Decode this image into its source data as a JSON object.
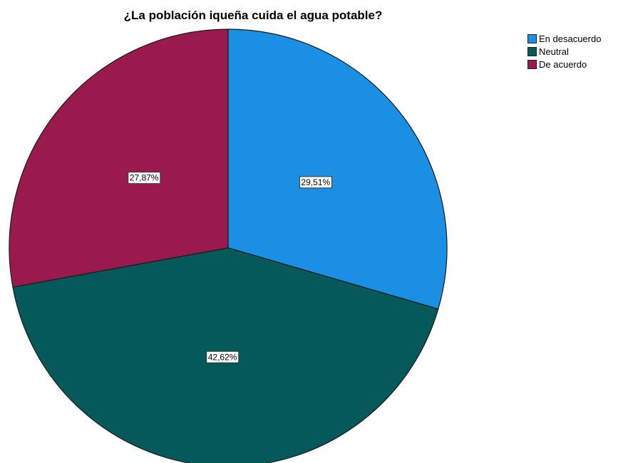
{
  "chart_data": {
    "type": "pie",
    "title": "¿La población iqueña cuida el agua potable?",
    "categories": [
      "En desacuerdo",
      "Neutral",
      "De acuerdo"
    ],
    "values": [
      29.51,
      42.62,
      27.87
    ],
    "value_labels": [
      "29,51%",
      "42,62%",
      "27,87%"
    ],
    "colors": [
      "#1a8fe3",
      "#06595a",
      "#9a1a4d"
    ],
    "start_angle_deg": 0,
    "direction": "clockwise",
    "legend_placement": "top-right"
  },
  "legend": {
    "items": [
      {
        "label": "En desacuerdo",
        "color": "#1a8fe3"
      },
      {
        "label": "Neutral",
        "color": "#06595a"
      },
      {
        "label": "De acuerdo",
        "color": "#9a1a4d"
      }
    ]
  }
}
